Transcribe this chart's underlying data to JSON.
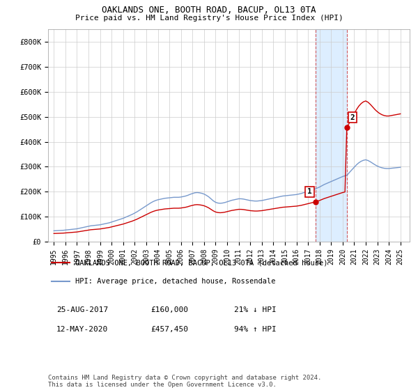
{
  "title": "OAKLANDS ONE, BOOTH ROAD, BACUP, OL13 0TA",
  "subtitle": "Price paid vs. HM Land Registry's House Price Index (HPI)",
  "footer": "Contains HM Land Registry data © Crown copyright and database right 2024.\nThis data is licensed under the Open Government Licence v3.0.",
  "legend_line1": "OAKLANDS ONE, BOOTH ROAD, BACUP, OL13 0TA (detached house)",
  "legend_line2": "HPI: Average price, detached house, Rossendale",
  "sale1_label": "1",
  "sale1_date": "25-AUG-2017",
  "sale1_price": "£160,000",
  "sale1_hpi": "21% ↓ HPI",
  "sale2_label": "2",
  "sale2_date": "12-MAY-2020",
  "sale2_price": "£457,450",
  "sale2_hpi": "94% ↑ HPI",
  "hpi_color": "#7799cc",
  "price_color": "#cc0000",
  "highlight_color": "#ddeeff",
  "grid_color": "#cccccc",
  "ylim": [
    0,
    850000
  ],
  "yticks": [
    0,
    100000,
    200000,
    300000,
    400000,
    500000,
    600000,
    700000,
    800000
  ],
  "ytick_labels": [
    "£0",
    "£100K",
    "£200K",
    "£300K",
    "£400K",
    "£500K",
    "£600K",
    "£700K",
    "£800K"
  ],
  "sale1_year": 2017.65,
  "sale1_value": 160000,
  "sale2_year": 2020.36,
  "sale2_value": 457450,
  "xlim_left": 1994.5,
  "xlim_right": 2025.8
}
